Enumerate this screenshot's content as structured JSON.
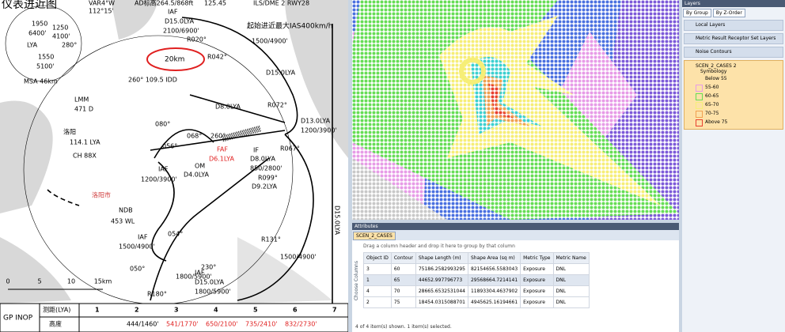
{
  "approach_chart": {
    "title": "仪表进近图",
    "header": [
      "VAR4°W",
      "AD标高264.5/868ft",
      "125.45",
      "ILS/DME 2 RWY28"
    ],
    "labels": [
      "1950",
      "6400'",
      "1250",
      "4100'",
      "LYA",
      "280°",
      "1550",
      "5100'",
      "MSA 46km",
      "112°15'",
      "IAF",
      "D15.0LYA",
      "2100/6900'",
      "R020°",
      "起始进近最大IAS400km/h",
      "1500/4900'",
      "R042°",
      "20km",
      "D15.0LYA",
      "260° 109.5 IDD",
      "LMM",
      "471 D",
      "080°",
      "D8.0LYA",
      "R072°",
      "洛阳",
      "114.1 LYA",
      "CH 88X",
      "056°",
      "068°",
      "260°",
      "FAF",
      "D6.1LYA",
      "OM",
      "D4.0LYA",
      "IF",
      "D8.0LYA",
      "850/2800'",
      "R067°",
      "D13.0LYA",
      "1200/3900'",
      "R099°",
      "D9.2LYA",
      "IAF",
      "1200/3900'",
      "NDB",
      "453 WL",
      "洛阳市",
      "IAF",
      "1500/4900'",
      "054°",
      "050°",
      "1800/5900'",
      "230°",
      "IAF",
      "D15.0LYA",
      "1800/5900'",
      "R180°",
      "R131°",
      "1500/4900'",
      "D15.0LYA"
    ],
    "scale": [
      "0",
      "5",
      "10",
      "15km"
    ],
    "profile_table": {
      "row_header": "GP INOP",
      "dist_label": "测距(LYA)",
      "alt_label": "高度",
      "distances": [
        1,
        2,
        3,
        4,
        5,
        6,
        7
      ],
      "altitudes": [
        "444/1460'",
        "541/1770'",
        "650/2100'",
        "735/2410'",
        "832/2730'"
      ]
    }
  },
  "layers": {
    "title": "Layers",
    "tabs": [
      "By Group",
      "By Z-Order"
    ],
    "groups": [
      "Local Layers",
      "Metric Result Receptor Set Layers",
      "Noise Contours"
    ],
    "layer": "SCEN_2_CASES 2",
    "symbology": "Symbology",
    "legend": [
      {
        "label": "Below 55"
      },
      {
        "label": "55-60",
        "color": "#e79be7"
      },
      {
        "label": "60-65",
        "color": "#66dd55"
      },
      {
        "label": "65-70",
        "color": "#f6ee77"
      },
      {
        "label": "70-75",
        "color": "#f0a050"
      },
      {
        "label": "Above 75",
        "color": "#e84030"
      }
    ]
  },
  "attributes": {
    "title": "Attributes",
    "tab": "SCEN_2_CASES",
    "hint": "Drag a column header and drop it here to group by that column",
    "choose_columns": "Choose Columns",
    "columns": [
      "Object ID",
      "Contour",
      "Shape Length (m)",
      "Shape Area (sq m)",
      "Metric Type",
      "Metric Name"
    ],
    "rows": [
      [
        "3",
        "60",
        "75186.2582993295",
        "82154656.5583043",
        "Exposure",
        "DNL"
      ],
      [
        "1",
        "65",
        "44652.997796773",
        "29568664.7214141",
        "Exposure",
        "DNL"
      ],
      [
        "4",
        "70",
        "28665.6532531044",
        "11893304.4637902",
        "Exposure",
        "DNL"
      ],
      [
        "2",
        "75",
        "18454.0315088701",
        "4945625.16194661",
        "Exposure",
        "DNL"
      ]
    ],
    "footer": "4 of 4 item(s) shown. 1 item(s) selected."
  }
}
